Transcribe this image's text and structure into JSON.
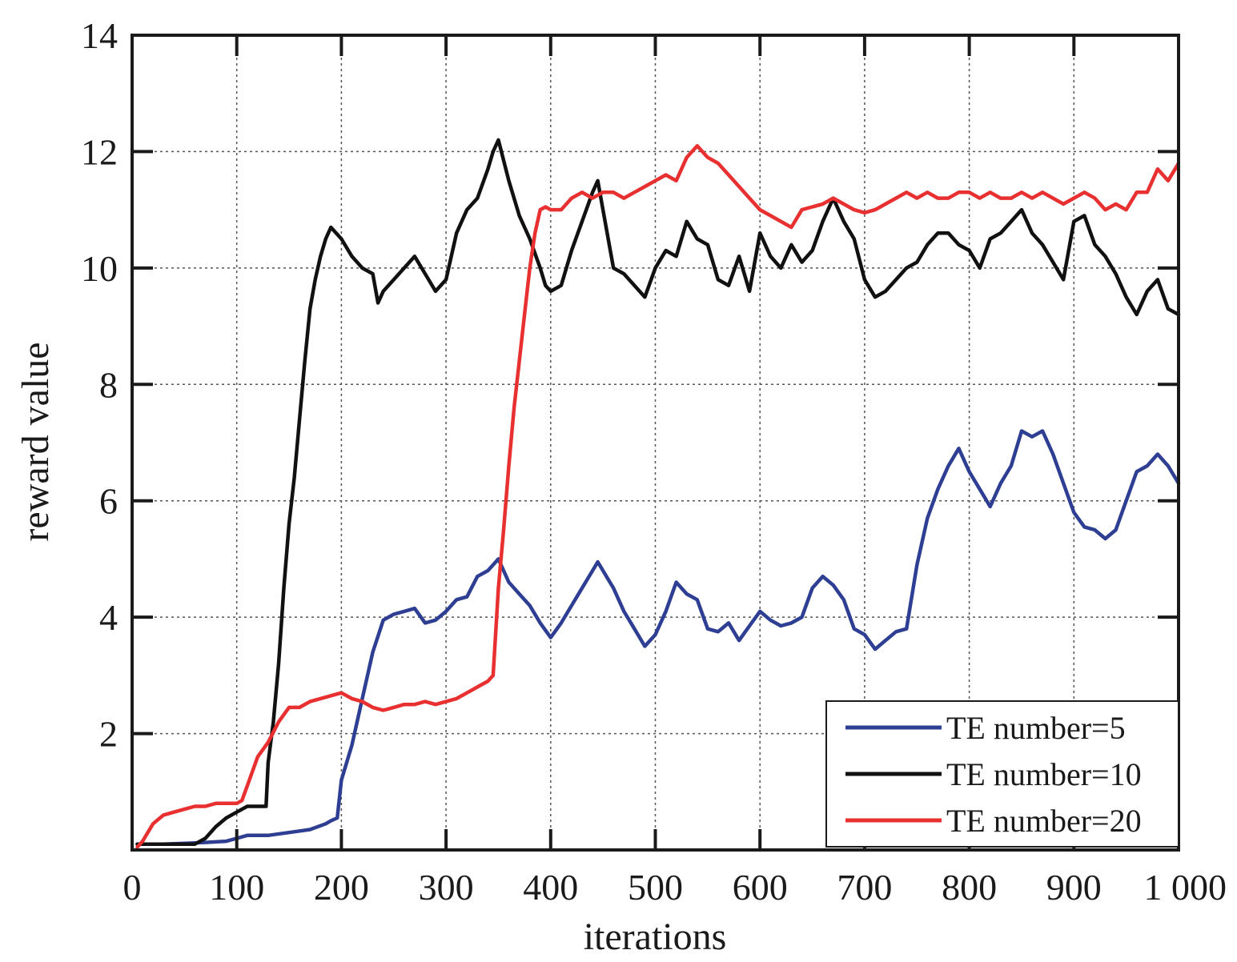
{
  "chart_data": {
    "type": "line",
    "xlabel": "iterations",
    "ylabel": "reward value",
    "xlim": [
      0,
      1000
    ],
    "ylim": [
      0,
      14
    ],
    "grid": true,
    "legend_position": "bottom-right",
    "x_ticks": [
      0,
      100,
      200,
      300,
      400,
      500,
      600,
      700,
      800,
      900,
      1000
    ],
    "x_tick_labels": [
      "0",
      "100",
      "200",
      "300",
      "400",
      "500",
      "600",
      "700",
      "800",
      "900",
      "1 000"
    ],
    "y_ticks": [
      2,
      4,
      6,
      8,
      10,
      12,
      14
    ],
    "y_tick_labels": [
      "2",
      "4",
      "6",
      "8",
      "10",
      "12",
      "14"
    ],
    "series": [
      {
        "name": "TE number=5",
        "color": "#2e3f93",
        "x": [
          5,
          30,
          60,
          90,
          100,
          110,
          130,
          150,
          170,
          185,
          190,
          196,
          200,
          210,
          220,
          230,
          240,
          250,
          260,
          270,
          280,
          290,
          300,
          310,
          320,
          330,
          340,
          345,
          350,
          360,
          370,
          380,
          390,
          400,
          410,
          420,
          430,
          440,
          445,
          450,
          460,
          470,
          480,
          490,
          500,
          510,
          520,
          530,
          540,
          550,
          560,
          570,
          580,
          590,
          600,
          610,
          620,
          630,
          640,
          650,
          660,
          670,
          680,
          690,
          700,
          710,
          720,
          730,
          740,
          750,
          760,
          770,
          780,
          790,
          800,
          810,
          820,
          830,
          840,
          850,
          860,
          870,
          880,
          890,
          900,
          910,
          920,
          930,
          940,
          950,
          960,
          970,
          980,
          990,
          1000
        ],
        "y": [
          0.1,
          0.1,
          0.12,
          0.15,
          0.2,
          0.25,
          0.25,
          0.3,
          0.35,
          0.45,
          0.5,
          0.55,
          1.2,
          1.8,
          2.6,
          3.4,
          3.95,
          4.05,
          4.1,
          4.15,
          3.9,
          3.95,
          4.1,
          4.3,
          4.35,
          4.7,
          4.8,
          4.9,
          5.0,
          4.6,
          4.4,
          4.2,
          3.9,
          3.65,
          3.9,
          4.2,
          4.5,
          4.8,
          4.95,
          4.8,
          4.5,
          4.1,
          3.8,
          3.5,
          3.7,
          4.1,
          4.6,
          4.4,
          4.3,
          3.8,
          3.75,
          3.9,
          3.6,
          3.85,
          4.1,
          3.95,
          3.85,
          3.9,
          4.0,
          4.5,
          4.7,
          4.55,
          4.3,
          3.8,
          3.7,
          3.45,
          3.6,
          3.75,
          3.8,
          4.9,
          5.7,
          6.2,
          6.6,
          6.9,
          6.5,
          6.2,
          5.9,
          6.3,
          6.6,
          7.2,
          7.1,
          7.2,
          6.8,
          6.3,
          5.8,
          5.55,
          5.5,
          5.35,
          5.5,
          6.0,
          6.5,
          6.6,
          6.8,
          6.6,
          6.3
        ]
      },
      {
        "name": "TE number=10",
        "color": "#111111",
        "x": [
          5,
          30,
          60,
          70,
          80,
          90,
          100,
          110,
          120,
          128,
          130,
          135,
          140,
          145,
          150,
          155,
          160,
          165,
          170,
          175,
          180,
          185,
          190,
          200,
          210,
          220,
          230,
          235,
          240,
          250,
          260,
          270,
          280,
          290,
          300,
          310,
          320,
          330,
          340,
          345,
          350,
          360,
          370,
          380,
          390,
          395,
          400,
          410,
          420,
          430,
          440,
          445,
          450,
          460,
          470,
          480,
          490,
          500,
          510,
          520,
          530,
          540,
          550,
          560,
          570,
          580,
          590,
          600,
          610,
          620,
          630,
          640,
          650,
          660,
          670,
          680,
          690,
          700,
          710,
          720,
          730,
          740,
          750,
          760,
          770,
          780,
          790,
          800,
          810,
          820,
          830,
          840,
          850,
          860,
          870,
          880,
          890,
          900,
          910,
          920,
          930,
          940,
          950,
          960,
          970,
          980,
          990,
          1000
        ],
        "y": [
          0.1,
          0.1,
          0.1,
          0.2,
          0.4,
          0.55,
          0.65,
          0.75,
          0.75,
          0.75,
          1.5,
          2.2,
          3.2,
          4.5,
          5.6,
          6.4,
          7.4,
          8.4,
          9.3,
          9.8,
          10.2,
          10.5,
          10.7,
          10.5,
          10.2,
          10.0,
          9.9,
          9.4,
          9.6,
          9.8,
          10.0,
          10.2,
          9.9,
          9.6,
          9.8,
          10.6,
          11.0,
          11.2,
          11.7,
          12.0,
          12.2,
          11.5,
          10.9,
          10.5,
          10.0,
          9.7,
          9.6,
          9.7,
          10.3,
          10.8,
          11.3,
          11.5,
          11.0,
          10.0,
          9.9,
          9.7,
          9.5,
          10.0,
          10.3,
          10.2,
          10.8,
          10.5,
          10.4,
          9.8,
          9.7,
          10.2,
          9.6,
          10.6,
          10.2,
          10.0,
          10.4,
          10.1,
          10.3,
          10.8,
          11.2,
          10.8,
          10.5,
          9.8,
          9.5,
          9.6,
          9.8,
          10.0,
          10.1,
          10.4,
          10.6,
          10.6,
          10.4,
          10.3,
          10.0,
          10.5,
          10.6,
          10.8,
          11.0,
          10.6,
          10.4,
          10.1,
          9.8,
          10.8,
          10.9,
          10.4,
          10.2,
          9.9,
          9.5,
          9.2,
          9.6,
          9.8,
          9.3,
          9.2
        ]
      },
      {
        "name": "TE number=20",
        "color": "#e83030",
        "x": [
          5,
          10,
          15,
          20,
          30,
          40,
          50,
          60,
          70,
          80,
          90,
          100,
          105,
          110,
          120,
          130,
          140,
          150,
          160,
          170,
          180,
          190,
          200,
          210,
          220,
          230,
          240,
          250,
          260,
          270,
          280,
          290,
          300,
          310,
          320,
          330,
          340,
          345,
          350,
          355,
          360,
          365,
          370,
          375,
          380,
          385,
          390,
          395,
          400,
          410,
          420,
          430,
          440,
          450,
          460,
          470,
          480,
          490,
          500,
          510,
          520,
          530,
          540,
          550,
          560,
          570,
          580,
          590,
          600,
          610,
          620,
          630,
          640,
          650,
          660,
          670,
          680,
          690,
          700,
          710,
          720,
          730,
          740,
          750,
          760,
          770,
          780,
          790,
          800,
          810,
          820,
          830,
          840,
          850,
          860,
          870,
          880,
          890,
          900,
          910,
          920,
          930,
          940,
          950,
          960,
          970,
          980,
          990,
          1000
        ],
        "y": [
          0.05,
          0.15,
          0.3,
          0.45,
          0.6,
          0.65,
          0.7,
          0.75,
          0.75,
          0.8,
          0.8,
          0.8,
          0.85,
          1.1,
          1.6,
          1.85,
          2.2,
          2.45,
          2.45,
          2.55,
          2.6,
          2.65,
          2.7,
          2.6,
          2.55,
          2.45,
          2.4,
          2.45,
          2.5,
          2.5,
          2.55,
          2.5,
          2.55,
          2.6,
          2.7,
          2.8,
          2.9,
          3.0,
          4.5,
          5.5,
          6.6,
          7.6,
          8.4,
          9.2,
          10.0,
          10.6,
          11.0,
          11.05,
          11.0,
          11.0,
          11.2,
          11.3,
          11.2,
          11.3,
          11.3,
          11.2,
          11.3,
          11.4,
          11.5,
          11.6,
          11.5,
          11.9,
          12.1,
          11.9,
          11.8,
          11.6,
          11.4,
          11.2,
          11.0,
          10.9,
          10.8,
          10.7,
          11.0,
          11.05,
          11.1,
          11.2,
          11.1,
          11.0,
          10.95,
          11.0,
          11.1,
          11.2,
          11.3,
          11.2,
          11.3,
          11.2,
          11.2,
          11.3,
          11.3,
          11.2,
          11.3,
          11.2,
          11.2,
          11.3,
          11.2,
          11.3,
          11.2,
          11.1,
          11.2,
          11.3,
          11.2,
          11.0,
          11.1,
          11.0,
          11.3,
          11.3,
          11.7,
          11.5,
          11.8
        ]
      }
    ]
  }
}
